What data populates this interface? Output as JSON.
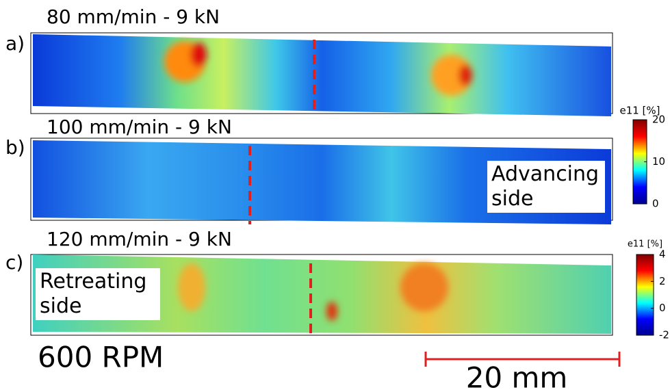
{
  "panels": [
    {
      "label": "a)",
      "title": "80 mm/min  - 9 kN"
    },
    {
      "label": "b)",
      "title": "100 mm/min  - 9 kN",
      "annotation": "Advancing side"
    },
    {
      "label": "c)",
      "title": "120 mm/min  - 9 kN",
      "annotation": "Retreating side"
    }
  ],
  "colorbars": [
    {
      "title": "e11 [%]",
      "lim": [
        0,
        20
      ],
      "ticks": [
        0,
        10,
        20
      ]
    },
    {
      "title": "e11 [%]",
      "lim": [
        -2,
        4
      ],
      "ticks": [
        -2,
        0,
        2,
        4
      ]
    }
  ],
  "footer": {
    "text": "600 RPM",
    "scale_bar": "20 mm"
  }
}
